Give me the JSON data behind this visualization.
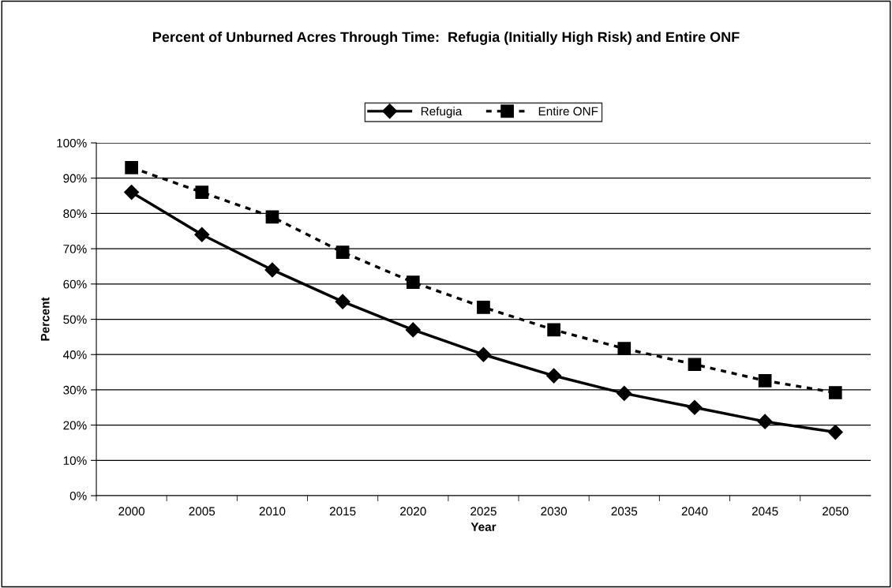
{
  "chart_data": {
    "type": "line",
    "title": "Percent of Unburned Acres Through Time:  Refugia (Initially High Risk) and Entire ONF",
    "xlabel": "Year",
    "ylabel": "Percent",
    "categories": [
      "2000",
      "2005",
      "2010",
      "2015",
      "2020",
      "2025",
      "2030",
      "2035",
      "2040",
      "2045",
      "2050"
    ],
    "series": [
      {
        "name": "Refugia",
        "color": "#000000",
        "marker": "diamond",
        "line_style": "solid",
        "values": [
          86,
          74,
          64,
          55,
          47,
          40,
          34,
          29,
          25,
          21,
          18
        ]
      },
      {
        "name": "Entire ONF",
        "color": "#000000",
        "marker": "square",
        "line_style": "dashed",
        "values": [
          93,
          86,
          79,
          69,
          60.5,
          53.4,
          47,
          41.7,
          37.2,
          32.6,
          29.2
        ]
      }
    ],
    "ylim": [
      0,
      100
    ],
    "yticks": [
      {
        "value": 0,
        "label": "0%"
      },
      {
        "value": 10,
        "label": "10%"
      },
      {
        "value": 20,
        "label": "20%"
      },
      {
        "value": 30,
        "label": "30%"
      },
      {
        "value": 40,
        "label": "40%"
      },
      {
        "value": 50,
        "label": "50%"
      },
      {
        "value": 60,
        "label": "60%"
      },
      {
        "value": 70,
        "label": "70%"
      },
      {
        "value": 80,
        "label": "80%"
      },
      {
        "value": 90,
        "label": "90%"
      },
      {
        "value": 100,
        "label": "100%"
      }
    ],
    "grid": "y",
    "legend": "top"
  }
}
